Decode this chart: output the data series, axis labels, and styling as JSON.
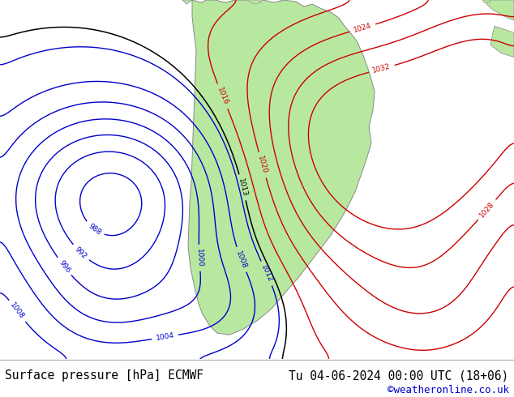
{
  "title_left": "Surface pressure [hPa] ECMWF",
  "title_right": "Tu 04-06-2024 00:00 UTC (18+06)",
  "copyright": "©weatheronline.co.uk",
  "bg_color": "#e8e8e8",
  "land_color": "#b8e8a0",
  "border_color": "#888888",
  "title_font_size": 10.5,
  "copy_font_size": 9,
  "footer_bg": "#ffffff",
  "contour_low_color": "#0000cc",
  "contour_high_color": "#cc0000",
  "contour_mid_color": "#000000"
}
